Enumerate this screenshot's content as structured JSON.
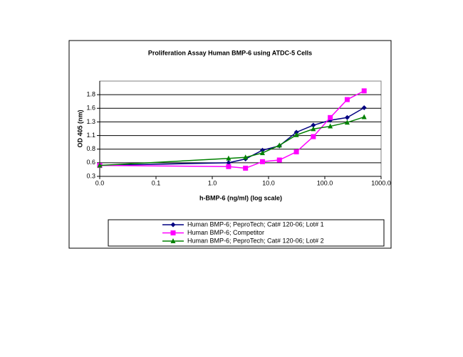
{
  "chart_data": {
    "type": "line",
    "title": "Proliferation Assay Human BMP-6 using ATDC-5 Cells",
    "x_label": "h-BMP-6 (ng/ml) (log scale)",
    "y_label": "OD 405 (nm)",
    "x_scale": "log",
    "grid": true,
    "legend": "bottom",
    "x": [
      0.01,
      1.95,
      3.9,
      7.8,
      15.6,
      31.25,
      62.5,
      125,
      250,
      500
    ],
    "series": [
      {
        "name": "Human BMP-6; PeproTech; Cat# 120-06; Lot# 1",
        "color": "#000080",
        "marker": "diamond",
        "values": [
          0.5,
          0.55,
          0.62,
          0.78,
          0.86,
          1.11,
          1.24,
          1.33,
          1.38,
          1.56
        ]
      },
      {
        "name": "Human BMP-6; Competitor",
        "color": "#ff00ff",
        "marker": "square",
        "values": [
          0.5,
          0.48,
          0.45,
          0.57,
          0.6,
          0.75,
          1.03,
          1.38,
          1.71,
          1.87
        ]
      },
      {
        "name": "Human BMP-6; PeproTech; Cat# 120-06; Lot# 2",
        "color": "#008000",
        "marker": "triangle",
        "values": [
          0.5,
          0.63,
          0.65,
          0.73,
          0.87,
          1.06,
          1.17,
          1.22,
          1.29,
          1.39
        ]
      }
    ],
    "xlim": [
      0.01,
      1000
    ],
    "xticks": [
      {
        "value": 0.01,
        "label": "0.0"
      },
      0.1,
      {
        "value": 1,
        "label": "1.0"
      },
      {
        "value": 10,
        "label": "10.0"
      },
      {
        "value": 100,
        "label": "100.0"
      },
      {
        "value": 1000,
        "label": "1000.0"
      }
    ],
    "ylim": [
      0.3,
      2.05
    ],
    "yticks": [
      0.3,
      {
        "value": 0.55,
        "label": "0.6"
      },
      0.8,
      {
        "value": 1.05,
        "label": "1.1"
      },
      1.3,
      {
        "value": 1.55,
        "label": "1.6"
      },
      1.8
    ]
  }
}
